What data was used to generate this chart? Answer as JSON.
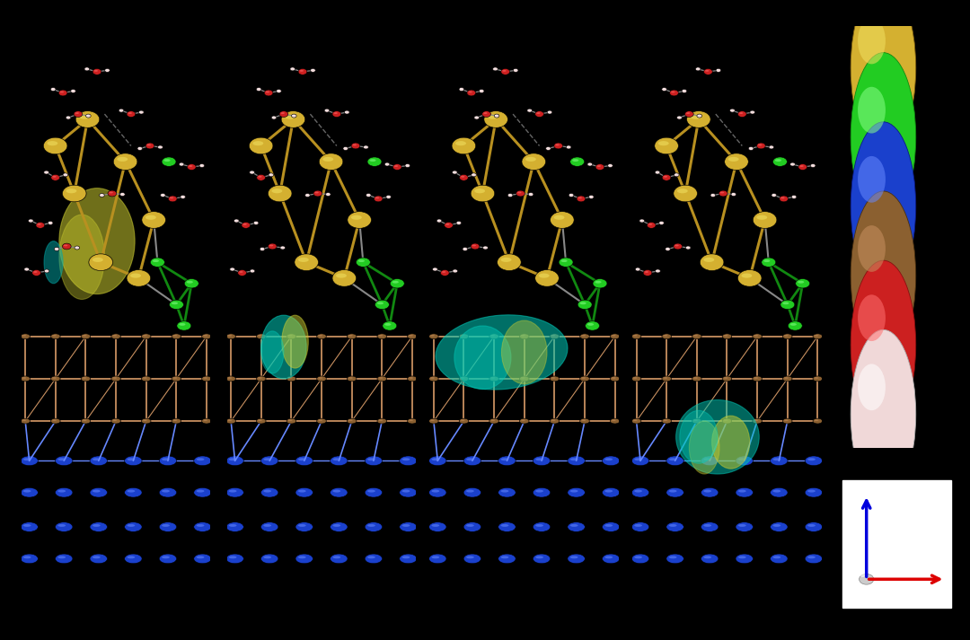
{
  "background_color": "#000000",
  "panel_bg": "#ffffff",
  "n_panels": 4,
  "panel_border_color": "#222222",
  "panel_border_lw": 1.8,
  "gold_color": "#d4b030",
  "gold_light": "#f0e060",
  "green_color": "#22cc22",
  "green_light": "#88ff88",
  "blue_color": "#1a40cc",
  "blue_light": "#6688ff",
  "brown_color": "#8b6030",
  "brown_light": "#c89060",
  "red_color": "#cc2020",
  "red_light": "#ff7070",
  "white_color": "#f0d8d8",
  "white_light": "#ffffff",
  "cyan_iso": "#00ccbb",
  "yellow_iso": "#cccc30",
  "legend_colors": [
    "#d4b030",
    "#22cc22",
    "#1a40cc",
    "#8b6030",
    "#cc2020",
    "#f0d8d8"
  ],
  "legend_ec": [
    "#806010",
    "#118811",
    "#0a1a88",
    "#4a3010",
    "#881010",
    "#aaaaaa"
  ]
}
